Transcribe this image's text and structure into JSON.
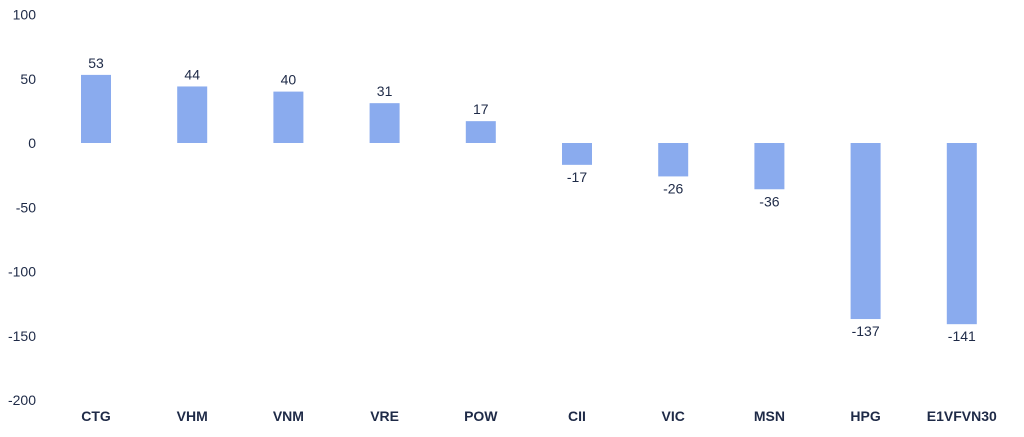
{
  "chart_data": {
    "type": "bar",
    "title": "",
    "xlabel": "",
    "ylabel": "",
    "categories": [
      "CTG",
      "VHM",
      "VNM",
      "VRE",
      "POW",
      "CII",
      "VIC",
      "MSN",
      "HPG",
      "E1VFVN30"
    ],
    "values": [
      53,
      44,
      40,
      31,
      17,
      -17,
      -26,
      -36,
      -137,
      -141
    ],
    "ylim": [
      -200,
      100
    ],
    "yticks": [
      100,
      50,
      0,
      -50,
      -100,
      -150,
      -200
    ],
    "grid": false,
    "legend": "none",
    "colors": {
      "bar": "#8aabee",
      "text": "#1e2a47"
    }
  }
}
